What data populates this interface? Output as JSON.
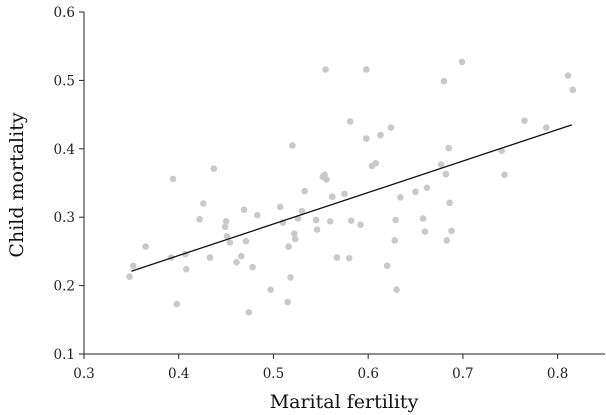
{
  "chart_data": {
    "type": "scatter",
    "xlabel": "Marital fertility",
    "ylabel": "Child mortality",
    "xlim": [
      0.3,
      0.85
    ],
    "ylim": [
      0.1,
      0.6
    ],
    "x_ticks": [
      "0.3",
      "0.4",
      "0.5",
      "0.6",
      "0.7",
      "0.8"
    ],
    "y_ticks": [
      "0.1",
      "0.2",
      "0.3",
      "0.4",
      "0.5",
      "0.6"
    ],
    "grid": false,
    "legend": "none",
    "colors": {
      "points": "#c9c9c9",
      "trend_line": "#111111"
    },
    "trend_line": {
      "x": [
        0.35,
        0.815
      ],
      "y": [
        0.221,
        0.435
      ]
    },
    "points": [
      {
        "x": 0.348,
        "y": 0.213
      },
      {
        "x": 0.352,
        "y": 0.229
      },
      {
        "x": 0.365,
        "y": 0.257
      },
      {
        "x": 0.392,
        "y": 0.241
      },
      {
        "x": 0.394,
        "y": 0.356
      },
      {
        "x": 0.398,
        "y": 0.173
      },
      {
        "x": 0.407,
        "y": 0.246
      },
      {
        "x": 0.408,
        "y": 0.224
      },
      {
        "x": 0.422,
        "y": 0.297
      },
      {
        "x": 0.426,
        "y": 0.32
      },
      {
        "x": 0.433,
        "y": 0.241
      },
      {
        "x": 0.437,
        "y": 0.371
      },
      {
        "x": 0.449,
        "y": 0.286
      },
      {
        "x": 0.45,
        "y": 0.294
      },
      {
        "x": 0.451,
        "y": 0.272
      },
      {
        "x": 0.454,
        "y": 0.263
      },
      {
        "x": 0.461,
        "y": 0.234
      },
      {
        "x": 0.466,
        "y": 0.243
      },
      {
        "x": 0.469,
        "y": 0.311
      },
      {
        "x": 0.471,
        "y": 0.265
      },
      {
        "x": 0.474,
        "y": 0.161
      },
      {
        "x": 0.478,
        "y": 0.227
      },
      {
        "x": 0.483,
        "y": 0.303
      },
      {
        "x": 0.497,
        "y": 0.194
      },
      {
        "x": 0.507,
        "y": 0.315
      },
      {
        "x": 0.51,
        "y": 0.292
      },
      {
        "x": 0.515,
        "y": 0.176
      },
      {
        "x": 0.516,
        "y": 0.257
      },
      {
        "x": 0.518,
        "y": 0.212
      },
      {
        "x": 0.52,
        "y": 0.405
      },
      {
        "x": 0.522,
        "y": 0.276
      },
      {
        "x": 0.523,
        "y": 0.268
      },
      {
        "x": 0.526,
        "y": 0.298
      },
      {
        "x": 0.53,
        "y": 0.309
      },
      {
        "x": 0.533,
        "y": 0.338
      },
      {
        "x": 0.545,
        "y": 0.296
      },
      {
        "x": 0.546,
        "y": 0.282
      },
      {
        "x": 0.552,
        "y": 0.359
      },
      {
        "x": 0.554,
        "y": 0.362
      },
      {
        "x": 0.555,
        "y": 0.516
      },
      {
        "x": 0.556,
        "y": 0.355
      },
      {
        "x": 0.56,
        "y": 0.294
      },
      {
        "x": 0.562,
        "y": 0.33
      },
      {
        "x": 0.567,
        "y": 0.241
      },
      {
        "x": 0.575,
        "y": 0.334
      },
      {
        "x": 0.58,
        "y": 0.24
      },
      {
        "x": 0.581,
        "y": 0.44
      },
      {
        "x": 0.582,
        "y": 0.295
      },
      {
        "x": 0.592,
        "y": 0.289
      },
      {
        "x": 0.598,
        "y": 0.415
      },
      {
        "x": 0.598,
        "y": 0.516
      },
      {
        "x": 0.604,
        "y": 0.375
      },
      {
        "x": 0.608,
        "y": 0.379
      },
      {
        "x": 0.613,
        "y": 0.42
      },
      {
        "x": 0.62,
        "y": 0.229
      },
      {
        "x": 0.624,
        "y": 0.431
      },
      {
        "x": 0.628,
        "y": 0.266
      },
      {
        "x": 0.629,
        "y": 0.296
      },
      {
        "x": 0.63,
        "y": 0.194
      },
      {
        "x": 0.634,
        "y": 0.329
      },
      {
        "x": 0.65,
        "y": 0.337
      },
      {
        "x": 0.658,
        "y": 0.298
      },
      {
        "x": 0.66,
        "y": 0.279
      },
      {
        "x": 0.662,
        "y": 0.343
      },
      {
        "x": 0.677,
        "y": 0.377
      },
      {
        "x": 0.68,
        "y": 0.499
      },
      {
        "x": 0.682,
        "y": 0.363
      },
      {
        "x": 0.683,
        "y": 0.266
      },
      {
        "x": 0.685,
        "y": 0.401
      },
      {
        "x": 0.686,
        "y": 0.321
      },
      {
        "x": 0.688,
        "y": 0.28
      },
      {
        "x": 0.699,
        "y": 0.527
      },
      {
        "x": 0.741,
        "y": 0.397
      },
      {
        "x": 0.744,
        "y": 0.362
      },
      {
        "x": 0.765,
        "y": 0.441
      },
      {
        "x": 0.788,
        "y": 0.431
      },
      {
        "x": 0.811,
        "y": 0.507
      },
      {
        "x": 0.816,
        "y": 0.486
      }
    ]
  }
}
